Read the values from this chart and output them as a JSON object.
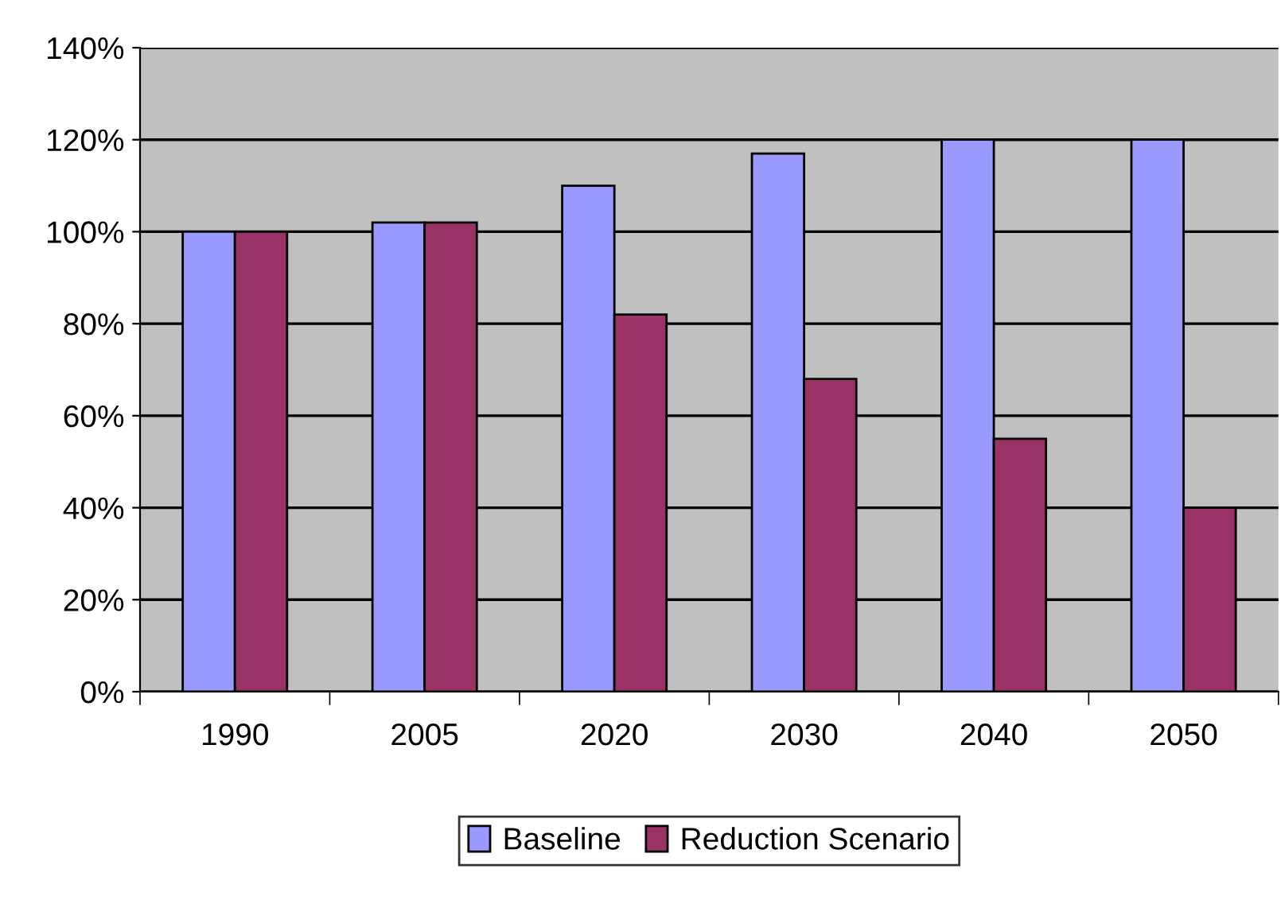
{
  "chart_data": {
    "type": "bar",
    "categories": [
      "1990",
      "2005",
      "2020",
      "2030",
      "2040",
      "2050"
    ],
    "series": [
      {
        "name": "Baseline",
        "color": "#9999ff",
        "values": [
          100,
          102,
          110,
          117,
          120,
          120
        ]
      },
      {
        "name": "Reduction Scenario",
        "color": "#993366",
        "values": [
          100,
          102,
          82,
          68,
          55,
          40
        ]
      }
    ],
    "ylim": [
      0,
      140
    ],
    "yticks": [
      {
        "value": 0,
        "label": "0%"
      },
      {
        "value": 20,
        "label": "20%"
      },
      {
        "value": 40,
        "label": "40%"
      },
      {
        "value": 60,
        "label": "60%"
      },
      {
        "value": 80,
        "label": "80%"
      },
      {
        "value": 100,
        "label": "100%"
      },
      {
        "value": 120,
        "label": "120%"
      },
      {
        "value": 140,
        "label": "140%"
      }
    ],
    "grid": "y",
    "legend": "bottom"
  }
}
